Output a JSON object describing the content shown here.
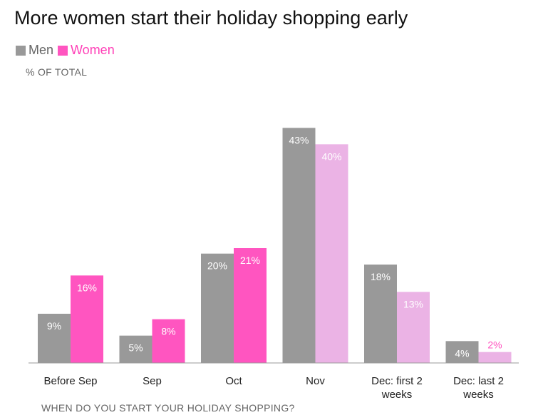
{
  "title": "More women start their holiday shopping early",
  "subtitle": "% OF TOTAL",
  "colors": {
    "men": "#999999",
    "women_strong": "#ff55c0",
    "women_light": "#ebb3e5",
    "axis": "#999999"
  },
  "chart_data": {
    "type": "bar",
    "title": "More women start their holiday shopping early",
    "subtitle": "% OF TOTAL",
    "xlabel": "WHEN DO YOU START YOUR HOLIDAY SHOPPING?",
    "ylabel": "",
    "ylim": [
      0,
      45
    ],
    "legend_position": "top-left",
    "grid": false,
    "categories": [
      [
        "Before Sep"
      ],
      [
        "Sep"
      ],
      [
        "Oct"
      ],
      [
        "Nov"
      ],
      [
        "Dec: first 2",
        "weeks"
      ],
      [
        "Dec: last 2",
        "weeks"
      ]
    ],
    "series": [
      {
        "name": "Men",
        "values": [
          9,
          5,
          20,
          43,
          18,
          4
        ],
        "labels": [
          "9%",
          "5%",
          "20%",
          "43%",
          "18%",
          "4%"
        ]
      },
      {
        "name": "Women",
        "values": [
          16,
          8,
          21,
          40,
          13,
          2
        ],
        "labels": [
          "16%",
          "8%",
          "21%",
          "40%",
          "13%",
          "2%"
        ],
        "highlight": [
          true,
          true,
          true,
          false,
          false,
          false
        ]
      }
    ]
  }
}
